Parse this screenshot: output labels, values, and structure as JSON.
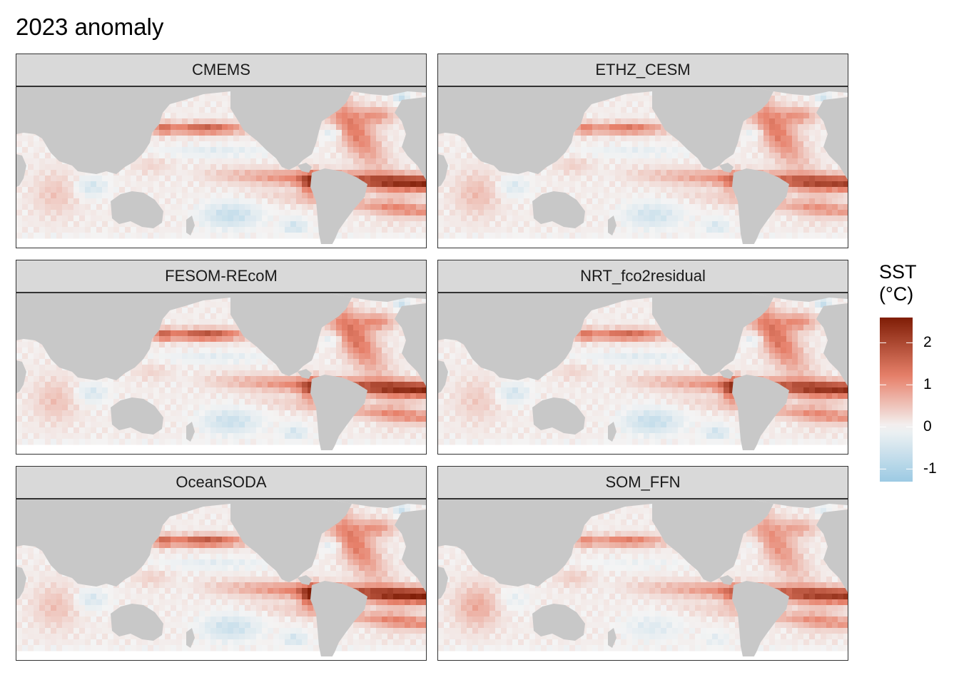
{
  "title": "2023 anomaly",
  "panels": [
    {
      "name": "CMEMS",
      "profile": {
        "enso": 1.0,
        "enso_peak": 2.35,
        "npac": 1.6,
        "natl": 1.0,
        "cold": 1.0,
        "wpac": 0.25,
        "ind": 0.4
      }
    },
    {
      "name": "ETHZ_CESM",
      "profile": {
        "enso": 0.85,
        "enso_peak": 1.6,
        "npac": 1.3,
        "natl": 1.0,
        "cold": 0.8,
        "wpac": 0.3,
        "ind": 0.5
      }
    },
    {
      "name": "FESOM-REcoM",
      "profile": {
        "enso": 1.0,
        "enso_peak": 2.1,
        "npac": 1.8,
        "natl": 1.1,
        "cold": 0.9,
        "wpac": 0.25,
        "ind": 0.45
      }
    },
    {
      "name": "NRT_fco2residual",
      "profile": {
        "enso": 0.95,
        "enso_peak": 2.4,
        "npac": 1.5,
        "natl": 1.1,
        "cold": 1.0,
        "wpac": 0.25,
        "ind": 0.35
      }
    },
    {
      "name": "OceanSODA",
      "profile": {
        "enso": 1.05,
        "enso_peak": 2.6,
        "npac": 1.7,
        "natl": 1.0,
        "cold": 0.9,
        "wpac": 0.3,
        "ind": 0.45
      }
    },
    {
      "name": "SOM_FFN",
      "profile": {
        "enso": 0.9,
        "enso_peak": 1.6,
        "npac": 1.2,
        "natl": 0.8,
        "cold": 0.5,
        "wpac": 0.35,
        "ind": 0.7
      }
    }
  ],
  "legend": {
    "title_line1": "SST",
    "title_line2": "(°C)",
    "min": -1.3,
    "max": 2.6,
    "ticks": [
      {
        "value": 2,
        "label": "2"
      },
      {
        "value": 1,
        "label": "1"
      },
      {
        "value": 0,
        "label": "0"
      },
      {
        "value": -1,
        "label": "-1"
      }
    ]
  },
  "colors": {
    "land": "#c8c8c8",
    "cold": "#9ccae3",
    "neutral": "#f4f4f4",
    "warm_mid": "#e7816b",
    "warm_hot": "#7f1d06"
  }
}
